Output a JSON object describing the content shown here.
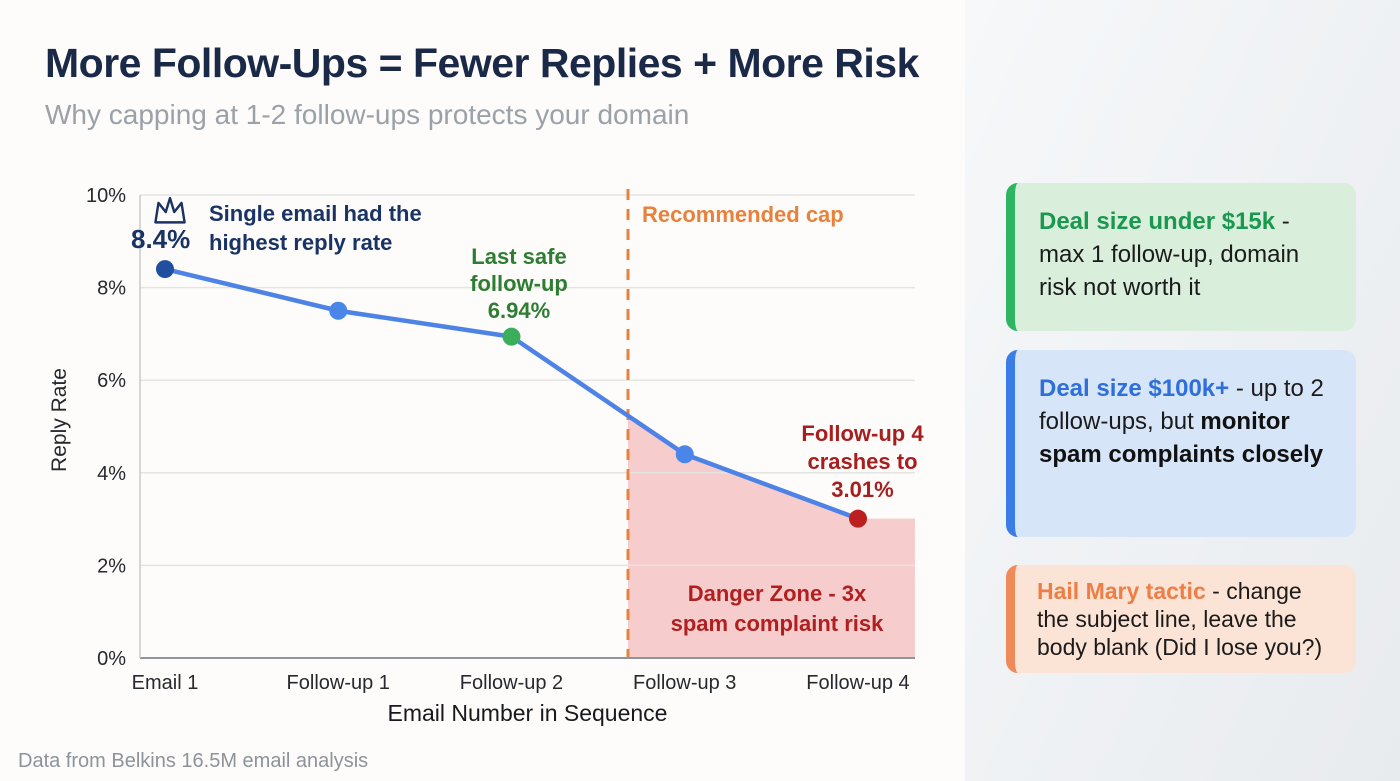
{
  "header": {
    "title": "More Follow-Ups = Fewer Replies + More Risk",
    "subtitle": "Why capping at 1-2 follow-ups protects your domain"
  },
  "footer": {
    "source": "Data from Belkins 16.5M email analysis"
  },
  "chart_data": {
    "type": "line",
    "xlabel": "Email Number in Sequence",
    "ylabel": "Reply Rate",
    "categories": [
      "Email 1",
      "Follow-up 1",
      "Follow-up 2",
      "Follow-up 3",
      "Follow-up 4"
    ],
    "values": [
      8.4,
      7.5,
      6.94,
      4.4,
      3.01
    ],
    "ylim": [
      0,
      10
    ],
    "yticks": [
      0,
      2,
      4,
      6,
      8,
      10
    ],
    "ytick_labels": [
      "0%",
      "2%",
      "4%",
      "6%",
      "8%",
      "10%"
    ],
    "grid": true,
    "legend": false,
    "line_color": "#4d82e6",
    "point_colors": [
      "#1f4f9e",
      "#4a86e8",
      "#3aae5a",
      "#4a86e8",
      "#bb1f1f"
    ],
    "cap_line": {
      "label": "Recommended cap",
      "color": "#e8813c",
      "between": [
        "Follow-up 2",
        "Follow-up 3"
      ]
    },
    "danger_zone": {
      "fill": "#f6cccc"
    },
    "annotations": {
      "peak": {
        "value": "8.4%",
        "lines": [
          "Single email had the",
          "highest reply rate"
        ]
      },
      "last_safe": {
        "lines": [
          "Last safe",
          "follow-up",
          "6.94%"
        ]
      },
      "crash": {
        "lines": [
          "Follow-up 4",
          "crashes to",
          "3.01%"
        ]
      },
      "danger": {
        "lines": [
          "Danger Zone - 3x",
          "spam complaint risk"
        ]
      }
    }
  },
  "cards": [
    {
      "lead": "Deal size under $15k",
      "body": " - max 1 follow-up, domain risk not worth it",
      "emphasis": "",
      "accent": "#2eb562",
      "bg": "#d9efdc",
      "lead_color": "#1b9850"
    },
    {
      "lead": "Deal size $100k+",
      "body": " - up to 2 follow-ups, but ",
      "emphasis": "monitor spam complaints closely",
      "accent": "#3c7ce8",
      "bg": "#d7e5f8",
      "lead_color": "#2e6fdb"
    },
    {
      "lead": "Hail Mary tactic",
      "body": " - change the subject line, leave the body blank (Did I lose you?)",
      "emphasis": "",
      "accent": "#f08a58",
      "bg": "#fbe3d5",
      "lead_color": "#ee7e45"
    }
  ]
}
